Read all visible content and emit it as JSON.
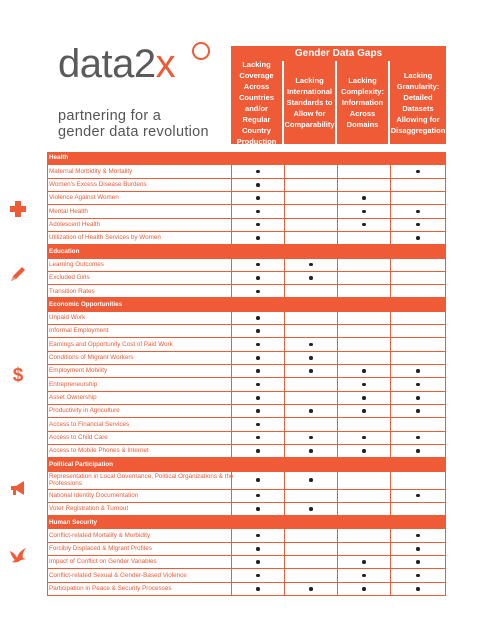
{
  "logo": {
    "word_main": "data2",
    "word_accent": "x",
    "tagline_line1": "partnering for a",
    "tagline_line2": "gender data revolution"
  },
  "header": {
    "title": "Gender Data Gaps",
    "columns": [
      "Lacking Coverage Across Countries and/or Regular Country Production",
      "Lacking International Standards to Allow for Comparability",
      "Lacking Complexity: Information Across Domains",
      "Lacking Granularity: Detailed Datasets Allowing for Disaggregation"
    ]
  },
  "sections": [
    {
      "name": "Health",
      "icon": "plus-icon",
      "rows": [
        {
          "label": "Maternal Morbidity & Mortality",
          "marks": [
            1,
            0,
            0,
            1
          ]
        },
        {
          "label": "Women's Excess Disease Burdens",
          "marks": [
            1,
            0,
            0,
            0
          ]
        },
        {
          "label": "Violence Against Women",
          "marks": [
            1,
            0,
            1,
            0
          ]
        },
        {
          "label": "Mental Health",
          "marks": [
            1,
            0,
            1,
            1
          ]
        },
        {
          "label": "Adolescent Health",
          "marks": [
            1,
            0,
            1,
            1
          ]
        },
        {
          "label": "Utilization of Health Services by Women",
          "marks": [
            1,
            0,
            0,
            1
          ]
        }
      ]
    },
    {
      "name": "Education",
      "icon": "pencil-icon",
      "rows": [
        {
          "label": "Learning Outcomes",
          "marks": [
            1,
            1,
            0,
            0
          ]
        },
        {
          "label": "Excluded Girls",
          "marks": [
            1,
            1,
            0,
            0
          ]
        },
        {
          "label": "Transition Rates",
          "marks": [
            1,
            0,
            0,
            0
          ]
        }
      ]
    },
    {
      "name": "Economic Opportunities",
      "icon": "dollar-icon",
      "rows": [
        {
          "label": "Unpaid Work",
          "marks": [
            1,
            0,
            0,
            0
          ]
        },
        {
          "label": "Informal Employment",
          "marks": [
            1,
            0,
            0,
            0
          ]
        },
        {
          "label": "Earnings and Opportunity Cost of Paid Work",
          "marks": [
            1,
            1,
            0,
            0
          ]
        },
        {
          "label": "Conditions of Migrant Workers",
          "marks": [
            1,
            1,
            0,
            0
          ]
        },
        {
          "label": "Employment Mobility",
          "marks": [
            1,
            1,
            1,
            1
          ]
        },
        {
          "label": "Entrepreneurship",
          "marks": [
            1,
            0,
            1,
            1
          ]
        },
        {
          "label": "Asset Ownership",
          "marks": [
            1,
            0,
            1,
            1
          ]
        },
        {
          "label": "Productivity in Agriculture",
          "marks": [
            1,
            1,
            1,
            1
          ]
        },
        {
          "label": "Access to Financial Services",
          "marks": [
            1,
            0,
            0,
            0
          ]
        },
        {
          "label": "Access to Child Care",
          "marks": [
            1,
            1,
            1,
            1
          ]
        },
        {
          "label": "Access to Mobile Phones & Internet",
          "marks": [
            1,
            1,
            1,
            1
          ]
        }
      ]
    },
    {
      "name": "Political Participation",
      "icon": "megaphone-icon",
      "rows": [
        {
          "label": "Representation in Local Governance, Political Organizations & the Professions",
          "marks": [
            1,
            1,
            0,
            0
          ],
          "tall": true
        },
        {
          "label": "National Identity Documentation",
          "marks": [
            1,
            0,
            0,
            1
          ]
        },
        {
          "label": "Voter Registration & Turnout",
          "marks": [
            1,
            1,
            0,
            0
          ]
        }
      ]
    },
    {
      "name": "Human Security",
      "icon": "dove-icon",
      "rows": [
        {
          "label": "Conflict-related Mortality & Morbidity",
          "marks": [
            1,
            0,
            0,
            1
          ]
        },
        {
          "label": "Forcibly Displaced & Migrant Profiles",
          "marks": [
            1,
            0,
            0,
            1
          ]
        },
        {
          "label": "Impact of Conflict on Gender Variables",
          "marks": [
            1,
            0,
            1,
            1
          ]
        },
        {
          "label": "Conflict-related Sexual & Gender-Based Violence",
          "marks": [
            1,
            0,
            1,
            1
          ]
        },
        {
          "label": "Participation in Peace & Security Processes",
          "marks": [
            1,
            1,
            1,
            1
          ]
        }
      ]
    }
  ],
  "colors": {
    "accent": "#ee5b36",
    "text": "#555555"
  }
}
